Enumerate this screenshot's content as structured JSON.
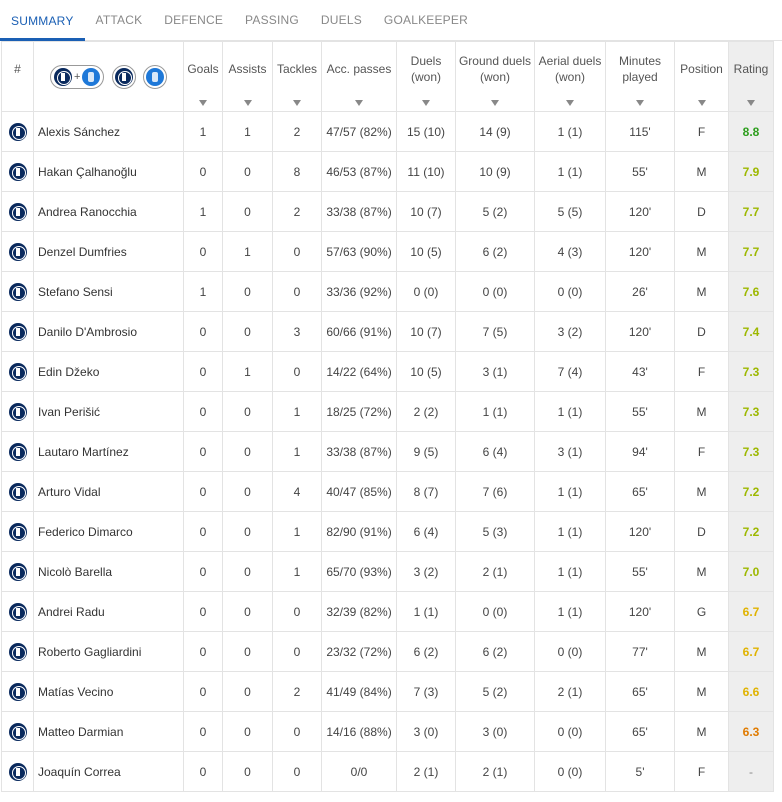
{
  "tabs": [
    "SUMMARY",
    "ATTACK",
    "DEFENCE",
    "PASSING",
    "DUELS",
    "GOALKEEPER"
  ],
  "columns": {
    "num": "#",
    "goals": "Goals",
    "assists": "Assists",
    "tackles": "Tackles",
    "acc_passes": "Acc. passes",
    "duels": "Duels (won)",
    "ground": "Ground duels (won)",
    "aerial": "Aerial duels (won)",
    "minutes": "Minutes played",
    "position": "Position",
    "rating": "Rating"
  },
  "team_filter": {
    "plus": "+"
  },
  "colors": {
    "accent": "#1a5fb4",
    "rating_green": "#2e9e1e",
    "rating_lime": "#9db800",
    "rating_yellow": "#e0b300",
    "rating_orange": "#e07b00"
  },
  "players": [
    {
      "name": "Alexis Sánchez",
      "goals": "1",
      "assists": "1",
      "tackles": "2",
      "passes": "47/57 (82%)",
      "duels": "15 (10)",
      "ground": "14 (9)",
      "aerial": "1 (1)",
      "minutes": "115'",
      "position": "F",
      "rating": "8.8",
      "rating_color": "#2e9e1e"
    },
    {
      "name": "Hakan Çalhanoğlu",
      "goals": "0",
      "assists": "0",
      "tackles": "8",
      "passes": "46/53 (87%)",
      "duels": "11 (10)",
      "ground": "10 (9)",
      "aerial": "1 (1)",
      "minutes": "55'",
      "position": "M",
      "rating": "7.9",
      "rating_color": "#9db800"
    },
    {
      "name": "Andrea Ranocchia",
      "goals": "1",
      "assists": "0",
      "tackles": "2",
      "passes": "33/38 (87%)",
      "duels": "10 (7)",
      "ground": "5 (2)",
      "aerial": "5 (5)",
      "minutes": "120'",
      "position": "D",
      "rating": "7.7",
      "rating_color": "#9db800"
    },
    {
      "name": "Denzel Dumfries",
      "goals": "0",
      "assists": "1",
      "tackles": "0",
      "passes": "57/63 (90%)",
      "duels": "10 (5)",
      "ground": "6 (2)",
      "aerial": "4 (3)",
      "minutes": "120'",
      "position": "M",
      "rating": "7.7",
      "rating_color": "#9db800"
    },
    {
      "name": "Stefano Sensi",
      "goals": "1",
      "assists": "0",
      "tackles": "0",
      "passes": "33/36 (92%)",
      "duels": "0 (0)",
      "ground": "0 (0)",
      "aerial": "0 (0)",
      "minutes": "26'",
      "position": "M",
      "rating": "7.6",
      "rating_color": "#9db800"
    },
    {
      "name": "Danilo D'Ambrosio",
      "goals": "0",
      "assists": "0",
      "tackles": "3",
      "passes": "60/66 (91%)",
      "duels": "10 (7)",
      "ground": "7 (5)",
      "aerial": "3 (2)",
      "minutes": "120'",
      "position": "D",
      "rating": "7.4",
      "rating_color": "#9db800"
    },
    {
      "name": "Edin Džeko",
      "goals": "0",
      "assists": "1",
      "tackles": "0",
      "passes": "14/22 (64%)",
      "duels": "10 (5)",
      "ground": "3 (1)",
      "aerial": "7 (4)",
      "minutes": "43'",
      "position": "F",
      "rating": "7.3",
      "rating_color": "#9db800"
    },
    {
      "name": "Ivan Perišić",
      "goals": "0",
      "assists": "0",
      "tackles": "1",
      "passes": "18/25 (72%)",
      "duels": "2 (2)",
      "ground": "1 (1)",
      "aerial": "1 (1)",
      "minutes": "55'",
      "position": "M",
      "rating": "7.3",
      "rating_color": "#9db800"
    },
    {
      "name": "Lautaro Martínez",
      "goals": "0",
      "assists": "0",
      "tackles": "1",
      "passes": "33/38 (87%)",
      "duels": "9 (5)",
      "ground": "6 (4)",
      "aerial": "3 (1)",
      "minutes": "94'",
      "position": "F",
      "rating": "7.3",
      "rating_color": "#9db800"
    },
    {
      "name": "Arturo Vidal",
      "goals": "0",
      "assists": "0",
      "tackles": "4",
      "passes": "40/47 (85%)",
      "duels": "8 (7)",
      "ground": "7 (6)",
      "aerial": "1 (1)",
      "minutes": "65'",
      "position": "M",
      "rating": "7.2",
      "rating_color": "#9db800"
    },
    {
      "name": "Federico Dimarco",
      "goals": "0",
      "assists": "0",
      "tackles": "1",
      "passes": "82/90 (91%)",
      "duels": "6 (4)",
      "ground": "5 (3)",
      "aerial": "1 (1)",
      "minutes": "120'",
      "position": "D",
      "rating": "7.2",
      "rating_color": "#9db800"
    },
    {
      "name": "Nicolò Barella",
      "goals": "0",
      "assists": "0",
      "tackles": "1",
      "passes": "65/70 (93%)",
      "duels": "3 (2)",
      "ground": "2 (1)",
      "aerial": "1 (1)",
      "minutes": "55'",
      "position": "M",
      "rating": "7.0",
      "rating_color": "#9db800"
    },
    {
      "name": "Andrei Radu",
      "goals": "0",
      "assists": "0",
      "tackles": "0",
      "passes": "32/39 (82%)",
      "duels": "1 (1)",
      "ground": "0 (0)",
      "aerial": "1 (1)",
      "minutes": "120'",
      "position": "G",
      "rating": "6.7",
      "rating_color": "#e0b300"
    },
    {
      "name": "Roberto Gagliardini",
      "goals": "0",
      "assists": "0",
      "tackles": "0",
      "passes": "23/32 (72%)",
      "duels": "6 (2)",
      "ground": "6 (2)",
      "aerial": "0 (0)",
      "minutes": "77'",
      "position": "M",
      "rating": "6.7",
      "rating_color": "#e0b300"
    },
    {
      "name": "Matías Vecino",
      "goals": "0",
      "assists": "0",
      "tackles": "2",
      "passes": "41/49 (84%)",
      "duels": "7 (3)",
      "ground": "5 (2)",
      "aerial": "2 (1)",
      "minutes": "65'",
      "position": "M",
      "rating": "6.6",
      "rating_color": "#e0b300"
    },
    {
      "name": "Matteo Darmian",
      "goals": "0",
      "assists": "0",
      "tackles": "0",
      "passes": "14/16 (88%)",
      "duels": "3 (0)",
      "ground": "3 (0)",
      "aerial": "0 (0)",
      "minutes": "65'",
      "position": "M",
      "rating": "6.3",
      "rating_color": "#e07b00"
    },
    {
      "name": "Joaquín Correa",
      "goals": "0",
      "assists": "0",
      "tackles": "0",
      "passes": "0/0",
      "duels": "2 (1)",
      "ground": "2 (1)",
      "aerial": "0 (0)",
      "minutes": "5'",
      "position": "F",
      "rating": "-",
      "rating_color": "#888888"
    }
  ]
}
